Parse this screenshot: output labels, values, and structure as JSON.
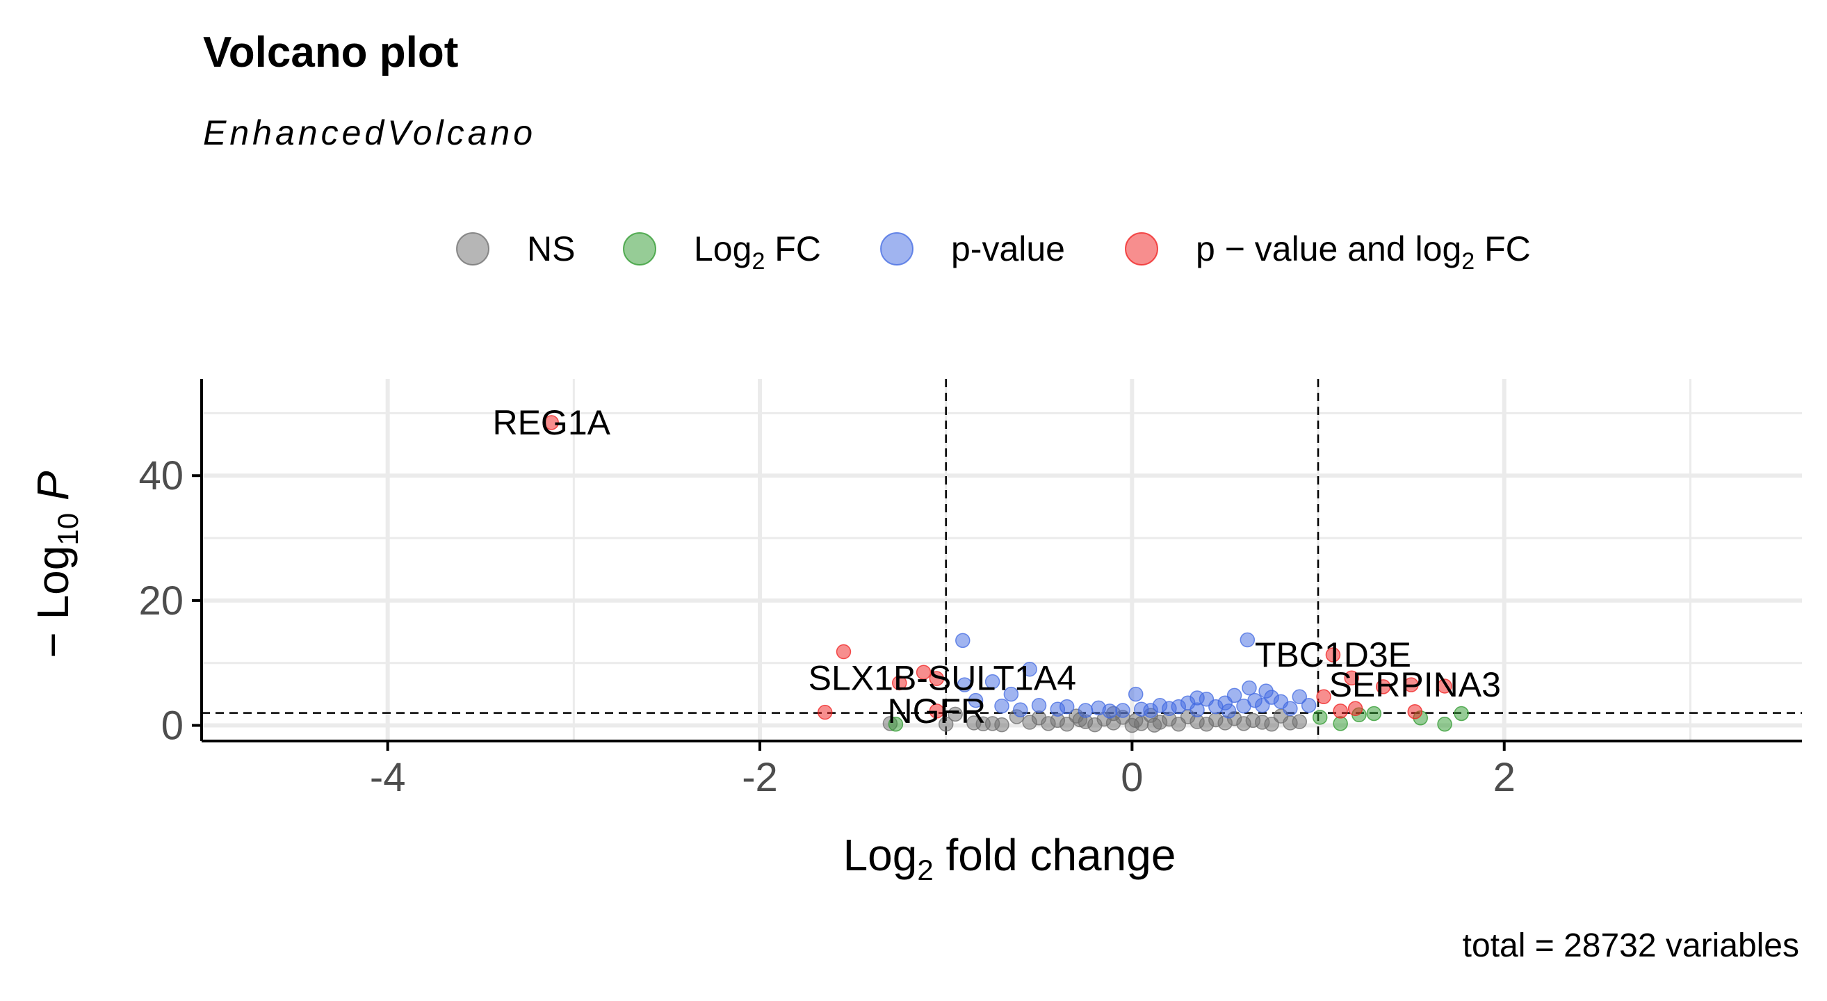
{
  "chart_data": {
    "type": "scatter",
    "title": "Volcano plot",
    "subtitle": "EnhancedVolcano",
    "caption": "total = 28732 variables",
    "xlabel": {
      "main": "Log",
      "sub": "2",
      "rest": " fold change"
    },
    "ylabel": {
      "pre": "− Log",
      "sub": "10",
      "italic": " P"
    },
    "xlim": [
      -5,
      3.6
    ],
    "ylim": [
      -2.5,
      55.5
    ],
    "x_ticks": [
      {
        "value": -4,
        "label": "-4"
      },
      {
        "value": -2,
        "label": "-2"
      },
      {
        "value": 0,
        "label": "0"
      },
      {
        "value": 2,
        "label": "2"
      }
    ],
    "y_ticks": [
      {
        "value": 0,
        "label": "0"
      },
      {
        "value": 20,
        "label": "20"
      },
      {
        "value": 40,
        "label": "40"
      }
    ],
    "grid": true,
    "legend_position": "top",
    "thresholds": {
      "fc_cutoff": 1,
      "p_cutoff_log10": 2
    },
    "legend": [
      {
        "key": "ns",
        "label": "NS",
        "label_sub": "",
        "label_rest": "",
        "color": "#6e6e6e"
      },
      {
        "key": "fc",
        "label": "Log",
        "label_sub": "2",
        "label_rest": " FC",
        "color": "#2e9a2e"
      },
      {
        "key": "p",
        "label": "p-value",
        "label_sub": "",
        "label_rest": "",
        "color": "#4169e1"
      },
      {
        "key": "pfc",
        "label": "p − value and log",
        "label_sub": "2",
        "label_rest": " FC",
        "color": "#f01e1e"
      }
    ],
    "series": [
      {
        "key": "ns",
        "points": [
          [
            -1.3,
            0.3
          ],
          [
            -1.0,
            0.2
          ],
          [
            -0.85,
            0.4
          ],
          [
            -0.8,
            0.25
          ],
          [
            -0.75,
            0.3
          ],
          [
            -0.7,
            0.1
          ],
          [
            -0.62,
            1.4
          ],
          [
            -0.55,
            0.5
          ],
          [
            -0.5,
            1.2
          ],
          [
            -0.45,
            0.3
          ],
          [
            -0.4,
            0.8
          ],
          [
            -0.35,
            0.2
          ],
          [
            -0.3,
            1.5
          ],
          [
            -0.25,
            0.6
          ],
          [
            -0.2,
            0.1
          ],
          [
            -0.15,
            1.0
          ],
          [
            -0.1,
            0.4
          ],
          [
            -0.05,
            1.3
          ],
          [
            0.0,
            0.0
          ],
          [
            0.02,
            0.8
          ],
          [
            0.05,
            0.3
          ],
          [
            0.1,
            1.6
          ],
          [
            0.15,
            0.5
          ],
          [
            0.2,
            1.0
          ],
          [
            0.25,
            0.2
          ],
          [
            0.3,
            1.4
          ],
          [
            0.35,
            0.6
          ],
          [
            0.4,
            0.2
          ],
          [
            0.45,
            0.9
          ],
          [
            0.5,
            0.4
          ],
          [
            0.55,
            1.1
          ],
          [
            0.6,
            0.3
          ],
          [
            0.65,
            0.8
          ],
          [
            0.7,
            0.5
          ],
          [
            0.75,
            0.2
          ],
          [
            0.8,
            1.5
          ],
          [
            0.85,
            0.4
          ],
          [
            0.9,
            0.6
          ],
          [
            -0.95,
            1.8
          ],
          [
            -0.1,
            1.9
          ],
          [
            0.12,
            0.05
          ],
          [
            -0.28,
            0.9
          ]
        ]
      },
      {
        "key": "fc",
        "points": [
          [
            -1.27,
            0.2
          ],
          [
            1.01,
            1.3
          ],
          [
            1.12,
            0.3
          ],
          [
            1.22,
            1.7
          ],
          [
            1.3,
            1.9
          ],
          [
            1.55,
            1.2
          ],
          [
            1.68,
            0.2
          ],
          [
            1.77,
            1.9
          ]
        ]
      },
      {
        "key": "p",
        "points": [
          [
            -0.91,
            13.6
          ],
          [
            -0.65,
            5.0
          ],
          [
            -0.55,
            9.0
          ],
          [
            -0.84,
            4.0
          ],
          [
            -0.7,
            3.1
          ],
          [
            -0.6,
            2.5
          ],
          [
            -0.5,
            3.2
          ],
          [
            -0.4,
            2.6
          ],
          [
            -0.35,
            3.0
          ],
          [
            -0.25,
            2.4
          ],
          [
            -0.18,
            2.8
          ],
          [
            -0.12,
            2.3
          ],
          [
            0.02,
            5.0
          ],
          [
            0.05,
            2.6
          ],
          [
            0.1,
            2.4
          ],
          [
            0.15,
            3.2
          ],
          [
            0.2,
            2.7
          ],
          [
            0.25,
            3.0
          ],
          [
            0.3,
            3.6
          ],
          [
            0.35,
            2.5
          ],
          [
            0.4,
            4.2
          ],
          [
            0.45,
            3.0
          ],
          [
            0.5,
            3.6
          ],
          [
            0.55,
            4.8
          ],
          [
            0.6,
            3.1
          ],
          [
            0.62,
            13.7
          ],
          [
            0.63,
            6.0
          ],
          [
            0.66,
            4.0
          ],
          [
            0.7,
            3.2
          ],
          [
            0.75,
            4.5
          ],
          [
            0.8,
            3.8
          ],
          [
            0.85,
            2.7
          ],
          [
            0.9,
            4.6
          ],
          [
            0.95,
            3.2
          ],
          [
            -0.9,
            6.5
          ],
          [
            -0.75,
            7.0
          ],
          [
            0.52,
            2.3
          ],
          [
            0.35,
            4.4
          ],
          [
            -0.05,
            2.4
          ],
          [
            0.72,
            5.5
          ]
        ]
      },
      {
        "key": "pfc",
        "points": [
          [
            -3.12,
            48.5
          ],
          [
            -1.55,
            11.8
          ],
          [
            -1.65,
            2.1
          ],
          [
            -1.25,
            6.8
          ],
          [
            -1.12,
            8.5
          ],
          [
            -1.05,
            7.5
          ],
          [
            -1.05,
            2.3
          ],
          [
            1.03,
            4.6
          ],
          [
            1.08,
            11.3
          ],
          [
            1.18,
            7.6
          ],
          [
            1.12,
            2.3
          ],
          [
            1.2,
            2.7
          ],
          [
            1.35,
            6.2
          ],
          [
            1.5,
            6.5
          ],
          [
            1.52,
            2.2
          ],
          [
            1.68,
            6.3
          ]
        ]
      }
    ],
    "labels": [
      {
        "text": "REG1A",
        "x": -3.12,
        "y": 48.5
      },
      {
        "text": "SLX1B-SULT1A4",
        "x": -1.02,
        "y": 7.6
      },
      {
        "text": "NGFR",
        "x": -1.05,
        "y": 2.3
      },
      {
        "text": "TBC1D3E",
        "x": 1.08,
        "y": 11.3
      },
      {
        "text": "SERPINA3",
        "x": 1.52,
        "y": 6.5
      }
    ]
  }
}
